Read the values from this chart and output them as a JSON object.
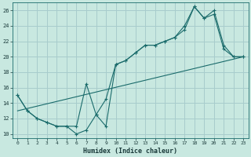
{
  "xlabel": "Humidex (Indice chaleur)",
  "xlim": [
    -0.5,
    23.5
  ],
  "ylim": [
    9.5,
    27.0
  ],
  "xticks": [
    0,
    1,
    2,
    3,
    4,
    5,
    6,
    7,
    8,
    9,
    10,
    11,
    12,
    13,
    14,
    15,
    16,
    17,
    18,
    19,
    20,
    21,
    22,
    23
  ],
  "yticks": [
    10,
    12,
    14,
    16,
    18,
    20,
    22,
    24,
    26
  ],
  "background_color": "#c8e8e0",
  "grid_color": "#a8cccc",
  "line_color": "#1a6b6b",
  "line1_x": [
    0,
    1,
    2,
    3,
    4,
    5,
    6,
    7,
    8,
    9,
    10,
    11,
    12,
    13,
    14,
    15,
    16,
    17,
    18,
    19,
    20,
    21,
    22,
    23
  ],
  "line1_y": [
    15.0,
    13.0,
    12.0,
    11.5,
    11.0,
    11.0,
    10.0,
    10.5,
    12.5,
    14.5,
    19.0,
    19.5,
    20.5,
    21.5,
    21.5,
    22.0,
    22.5,
    24.0,
    26.5,
    25.0,
    26.0,
    21.5,
    20.0,
    20.0
  ],
  "line2_x": [
    0,
    1,
    2,
    3,
    4,
    5,
    6,
    7,
    8,
    9,
    10,
    11,
    12,
    13,
    14,
    15,
    16,
    17,
    18,
    19,
    20,
    21,
    22,
    23
  ],
  "line2_y": [
    15.0,
    13.0,
    12.0,
    11.5,
    11.0,
    11.0,
    11.0,
    16.5,
    12.5,
    11.0,
    19.0,
    19.5,
    20.5,
    21.5,
    21.5,
    22.0,
    22.5,
    23.5,
    26.5,
    25.0,
    25.5,
    21.0,
    20.0,
    20.0
  ],
  "line3_x": [
    0,
    23
  ],
  "line3_y": [
    13.0,
    20.0
  ]
}
